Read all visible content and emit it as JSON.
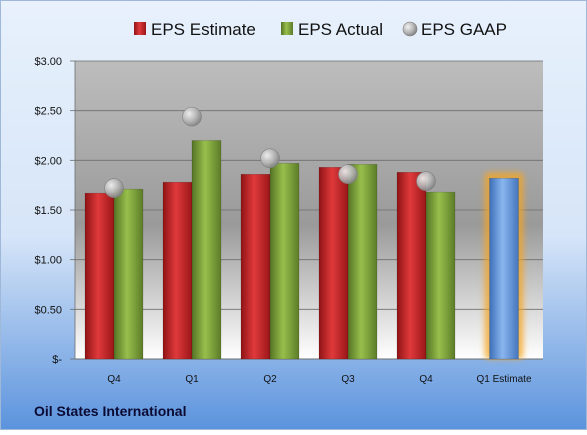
{
  "footer_label": "Oil States International",
  "chart_data": {
    "type": "bar",
    "categories": [
      "Q4",
      "Q1",
      "Q2",
      "Q3",
      "Q4",
      "Q1 Estimate"
    ],
    "series": [
      {
        "name": "EPS Estimate",
        "color": "#c0292b",
        "values": [
          1.67,
          1.78,
          1.86,
          1.93,
          1.88,
          null
        ]
      },
      {
        "name": "EPS Actual",
        "color": "#7ea43a",
        "values": [
          1.71,
          2.2,
          1.97,
          1.96,
          1.68,
          null
        ]
      },
      {
        "name": "EPS GAAP",
        "color": "#a6a6a6",
        "values": [
          1.72,
          2.44,
          2.02,
          1.86,
          1.79,
          null
        ],
        "marker": "circle"
      }
    ],
    "forecast": {
      "category": "Q1 Estimate",
      "value": 1.82,
      "color": "#6a9fe0",
      "glow_color": "#f5a623"
    },
    "yticks": [
      "$-",
      "$0.50",
      "$1.00",
      "$1.50",
      "$2.00",
      "$2.50",
      "$3.00"
    ],
    "ylim": [
      0,
      3
    ],
    "legend_position": "top",
    "grid": true,
    "colors": {
      "background_top": "#e8f1fc",
      "background_bottom": "#5b93dd",
      "plot_top": "#bdbdbd",
      "plot_bottom": "#ffffff"
    }
  }
}
